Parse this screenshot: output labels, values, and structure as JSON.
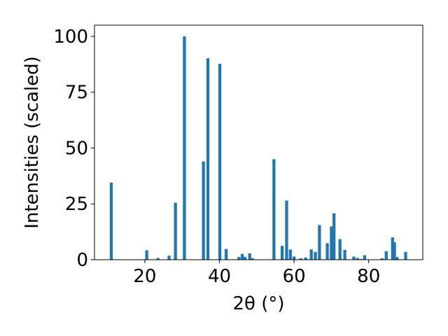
{
  "chart_data": {
    "type": "bar",
    "xlabel": "2θ (°)",
    "ylabel": "Intensities (scaled)",
    "xlim": [
      6.5,
      94.5
    ],
    "ylim": [
      0,
      105
    ],
    "x_ticks": [
      20,
      40,
      60,
      80
    ],
    "y_ticks": [
      0,
      25,
      50,
      75,
      100
    ],
    "bar_color": "#1f77b4",
    "grid": false,
    "bars": [
      {
        "x": 11.0,
        "y": 34.5
      },
      {
        "x": 20.5,
        "y": 4.2
      },
      {
        "x": 23.5,
        "y": 0.8
      },
      {
        "x": 26.5,
        "y": 1.8
      },
      {
        "x": 28.2,
        "y": 25.5
      },
      {
        "x": 30.6,
        "y": 100
      },
      {
        "x": 35.7,
        "y": 44
      },
      {
        "x": 36.9,
        "y": 90.2
      },
      {
        "x": 40.1,
        "y": 87.7
      },
      {
        "x": 41.8,
        "y": 4.8
      },
      {
        "x": 45.2,
        "y": 1.2
      },
      {
        "x": 46.1,
        "y": 2.6
      },
      {
        "x": 46.8,
        "y": 1.3
      },
      {
        "x": 48.1,
        "y": 2.8
      },
      {
        "x": 48.8,
        "y": 0.7
      },
      {
        "x": 54.6,
        "y": 45
      },
      {
        "x": 56.8,
        "y": 6.2
      },
      {
        "x": 58.0,
        "y": 26.5
      },
      {
        "x": 59.0,
        "y": 4.5
      },
      {
        "x": 60.0,
        "y": 1.4
      },
      {
        "x": 61.8,
        "y": 0.6
      },
      {
        "x": 63.1,
        "y": 1.0
      },
      {
        "x": 64.6,
        "y": 4.6
      },
      {
        "x": 65.7,
        "y": 3.5
      },
      {
        "x": 66.8,
        "y": 15.5
      },
      {
        "x": 68.9,
        "y": 7.4
      },
      {
        "x": 70.0,
        "y": 14.9
      },
      {
        "x": 70.7,
        "y": 20.8
      },
      {
        "x": 72.3,
        "y": 9.2
      },
      {
        "x": 73.6,
        "y": 4.4
      },
      {
        "x": 76.0,
        "y": 1.4
      },
      {
        "x": 77.0,
        "y": 0.8
      },
      {
        "x": 78.0,
        "y": 0.3
      },
      {
        "x": 78.9,
        "y": 2.0
      },
      {
        "x": 83.6,
        "y": 0.6
      },
      {
        "x": 84.7,
        "y": 3.8
      },
      {
        "x": 86.4,
        "y": 10.0
      },
      {
        "x": 86.9,
        "y": 7.8
      },
      {
        "x": 87.6,
        "y": 1.2
      },
      {
        "x": 89.9,
        "y": 3.5
      }
    ]
  }
}
